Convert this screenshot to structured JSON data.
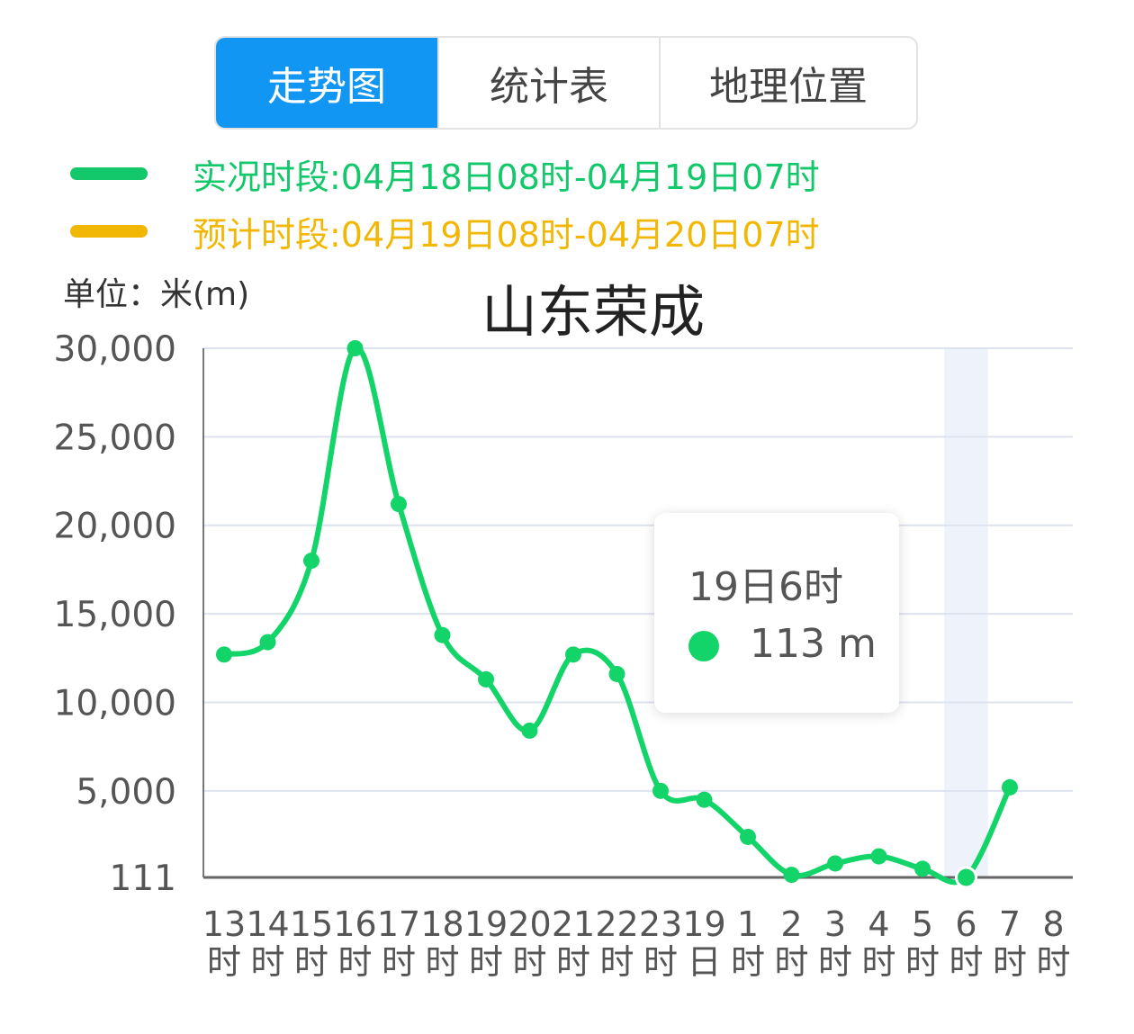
{
  "tabs": [
    {
      "label": "走势图",
      "active": true
    },
    {
      "label": "统计表",
      "active": false
    },
    {
      "label": "地理位置",
      "active": false
    }
  ],
  "legend": [
    {
      "label": "实况时段:04月18日08时-04月19日07时",
      "color": "#12c86a"
    },
    {
      "label": "预计时段:04月19日08时-04月20日07时",
      "color": "#f2b705"
    }
  ],
  "unit_label": "单位：米(m)",
  "accent_color": "#1296f3",
  "line_color": "#12d468",
  "chart_data": {
    "type": "line",
    "title": "山东荣成",
    "ylabel": "单位：米(m)",
    "ylim": [
      111,
      30000
    ],
    "y_ticks": [
      "111",
      "5,000",
      "10,000",
      "15,000",
      "20,000",
      "25,000",
      "30,000"
    ],
    "y_tick_values": [
      111,
      5000,
      10000,
      15000,
      20000,
      25000,
      30000
    ],
    "categories": [
      "13时",
      "14时",
      "15时",
      "16时",
      "17时",
      "18时",
      "19时",
      "20时",
      "21时",
      "22时",
      "23时",
      "19日",
      "1时",
      "2时",
      "3时",
      "4时",
      "5时",
      "6时",
      "7时",
      "8时"
    ],
    "x_tick_labels": [
      [
        "13",
        "时"
      ],
      [
        "14",
        "时"
      ],
      [
        "15",
        "时"
      ],
      [
        "16",
        "时"
      ],
      [
        "17",
        "时"
      ],
      [
        "18",
        "时"
      ],
      [
        "19",
        "时"
      ],
      [
        "20",
        "时"
      ],
      [
        "21",
        "时"
      ],
      [
        "22",
        "时"
      ],
      [
        "23",
        "时"
      ],
      [
        "19",
        "日"
      ],
      [
        "1",
        "时"
      ],
      [
        "2",
        "时"
      ],
      [
        "3",
        "时"
      ],
      [
        "4",
        "时"
      ],
      [
        "5",
        "时"
      ],
      [
        "6",
        "时"
      ],
      [
        "7",
        "时"
      ],
      [
        "8",
        "时"
      ]
    ],
    "series": [
      {
        "values": [
          12700,
          13400,
          18000,
          30000,
          21200,
          13800,
          11300,
          8400,
          12700,
          11600,
          5000,
          4500,
          2400,
          260,
          900,
          1300,
          600,
          113,
          5200,
          null
        ]
      }
    ],
    "grid": true,
    "highlight_index": 17,
    "tooltip": {
      "title": "19日6时",
      "value": "113 m"
    }
  }
}
